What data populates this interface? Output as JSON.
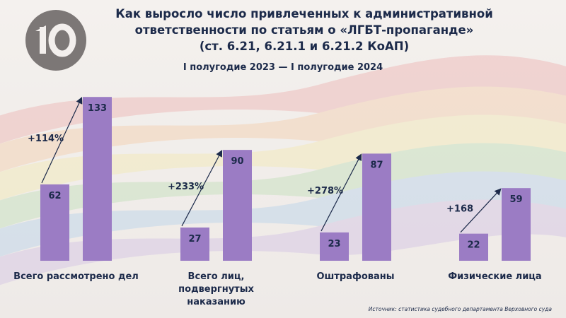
{
  "title_lines": [
    "Как выросло число привлеченных к административной",
    "ответственности по статьям о «ЛГБТ-пропаганде»",
    "(ст. 6.21, 6.21.1 и 6.21.2 КоАП)"
  ],
  "period": "I полугодие 2023 — I полугодие 2024",
  "source": "Источник: статистика судебного департамента Верховного суда",
  "colors": {
    "bar": "#9b7cc4",
    "text": "#1c2a4a",
    "logo": "#7c7776"
  },
  "chart_data": {
    "type": "bar",
    "categories": [
      [
        "Всего рассмотрено дел"
      ],
      [
        "Всего лиц,",
        "подвергнутых наказанию"
      ],
      [
        "Оштрафованы"
      ],
      [
        "Физические лица"
      ]
    ],
    "series": [
      {
        "values": [
          62,
          27,
          23,
          22
        ]
      },
      {
        "values": [
          133,
          90,
          87,
          59
        ]
      }
    ],
    "changes": [
      "+114%",
      "+233%",
      "+278%",
      "+168"
    ],
    "ylim": [
      0,
      140
    ],
    "grid": false
  }
}
